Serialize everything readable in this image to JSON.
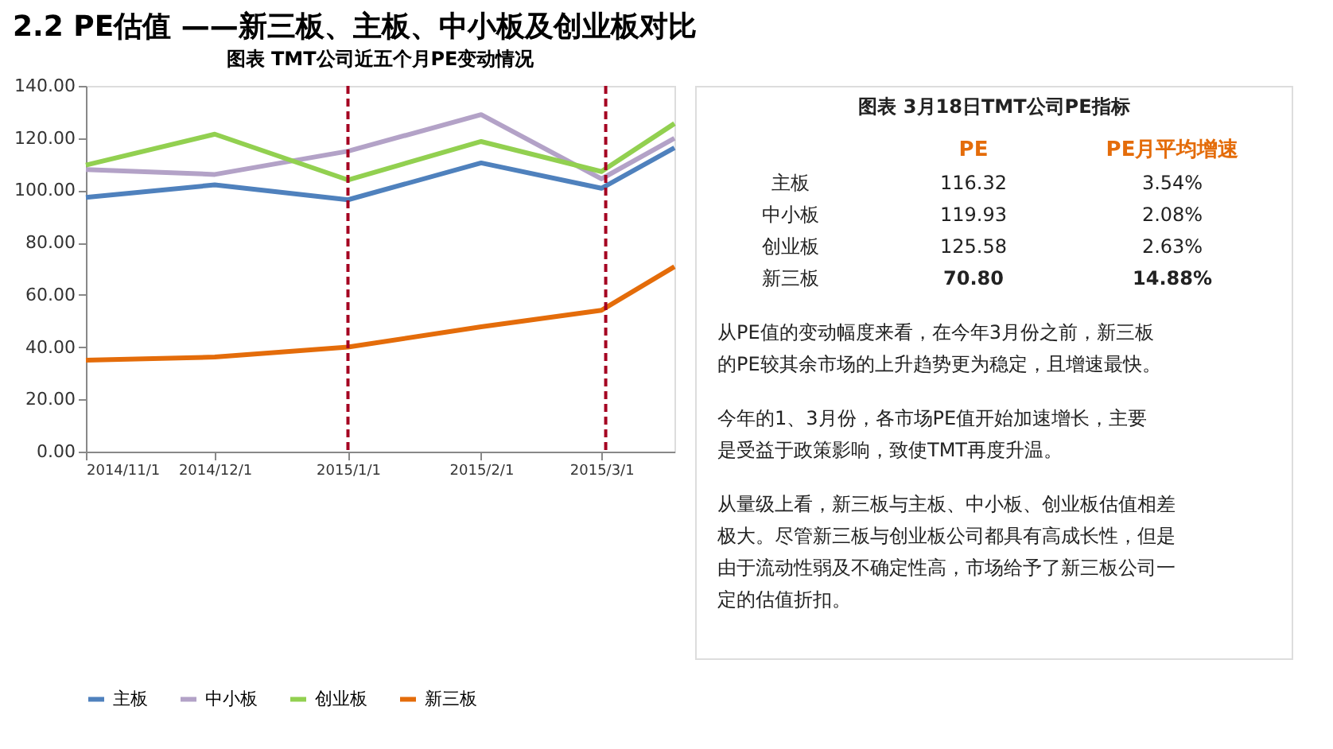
{
  "chart_data": {
    "type": "line",
    "title": "2.2 PE估值 ——新三板、主板、中小板及创业板对比",
    "subtitle": "图表 TMT公司近五个月PE变动情况",
    "x": [
      "2014-11-01",
      "2014-12-01",
      "2015-01-01",
      "2015-02-01",
      "2015-03-01",
      "2015-03-18"
    ],
    "series": [
      {
        "name": "主板",
        "color": "#4f81bd",
        "values": [
          97.3,
          102.1,
          96.4,
          110.5,
          100.8,
          116.32
        ]
      },
      {
        "name": "中小板",
        "color": "#b3a2c7",
        "values": [
          108.0,
          106.1,
          115.0,
          129.0,
          104.4,
          119.93
        ]
      },
      {
        "name": "创业板",
        "color": "#92d050",
        "values": [
          109.7,
          121.5,
          104.0,
          118.7,
          107.2,
          125.58
        ]
      },
      {
        "name": "新三板",
        "color": "#e46c0a",
        "values": [
          35.0,
          36.2,
          40.0,
          47.8,
          54.1,
          70.8
        ]
      }
    ],
    "xlim": [
      "2014-11-01",
      "2015-03-18"
    ],
    "xticks": [
      {
        "value": "2014-11-01",
        "label": "2014/11/1"
      },
      {
        "value": "2014-12-01",
        "label": "2014/12/1"
      },
      {
        "value": "2015-01-01",
        "label": "2015/1/1"
      },
      {
        "value": "2015-02-01",
        "label": "2015/2/1"
      },
      {
        "value": "2015-03-01",
        "label": "2015/3/1"
      }
    ],
    "ylim": [
      0,
      140
    ],
    "yticks": [
      {
        "value": 0,
        "label": "0.00"
      },
      {
        "value": 20,
        "label": "20.00"
      },
      {
        "value": 40,
        "label": "40.00"
      },
      {
        "value": 60,
        "label": "60.00"
      },
      {
        "value": 80,
        "label": "80.00"
      },
      {
        "value": 100,
        "label": "100.00"
      },
      {
        "value": 120,
        "label": "120.00"
      },
      {
        "value": 140,
        "label": "140.00"
      }
    ],
    "ref_lines": [
      {
        "axis": "x",
        "value": "2015-01-01",
        "color": "#a50021",
        "line_style": "dashed"
      },
      {
        "axis": "x",
        "value": "2015-03-02",
        "color": "#a50021",
        "line_style": "dashed"
      }
    ],
    "grid": false,
    "legend": "bottom",
    "marker": "none",
    "line_style": "solid",
    "annotations": [
      "图表 3月18日TMT公司PE指标",
      "PE",
      "PE月平均增速",
      "主板",
      "116.32",
      "3.54%",
      "中小板",
      "119.93",
      "2.08%",
      "创业板",
      "125.58",
      "2.63%",
      "新三板",
      "70.80",
      "14.88%",
      "从PE值的变动幅度来看，在今年3月份之前，新三板的PE较其余市场的上升趋势更为稳定，且增速最快。",
      "今年的1、3月份，各市场PE值开始加速增长，主要是受益于政策影响，致使TMT再度升温。",
      "从量级上看，新三板与主板、中小板、创业板估值相差极大。尽管新三板与创业板公司都具有高成长性，但是由于流动性弱及不确定性高，市场给予了新三板公司一定的估值折扣。"
    ]
  }
}
